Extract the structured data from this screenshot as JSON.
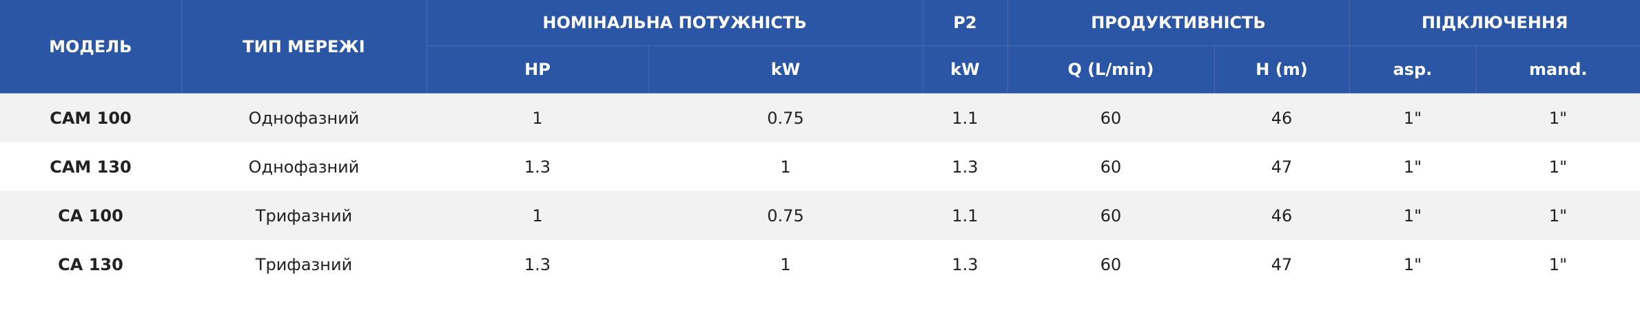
{
  "table": {
    "header": {
      "model": "МОДЕЛЬ",
      "network": "ТИП МЕРЕЖІ",
      "power": "НОМІНАЛЬНА ПОТУЖНІСТЬ",
      "p2": "P2",
      "performance": "ПРОДУКТИВНІСТЬ",
      "connection": "ПІДКЛЮЧЕННЯ",
      "sub": [
        "HP",
        "kW",
        "kW",
        "Q (L/min)",
        "H (m)",
        "asp.",
        "mand."
      ]
    },
    "rows": [
      [
        "CAM 100",
        "Однофазний",
        1,
        0.75,
        1.1,
        60,
        46,
        "1\"",
        "1\""
      ],
      [
        "CAM 130",
        "Однофазний",
        1.3,
        1,
        1.3,
        60,
        47,
        "1\"",
        "1\""
      ],
      [
        "CA 100",
        "Трифазний",
        1,
        0.75,
        1.1,
        60,
        46,
        "1\"",
        "1\""
      ],
      [
        "CA 130",
        "Трифазний",
        1.3,
        1,
        1.3,
        60,
        47,
        "1\"",
        "1\""
      ]
    ]
  }
}
